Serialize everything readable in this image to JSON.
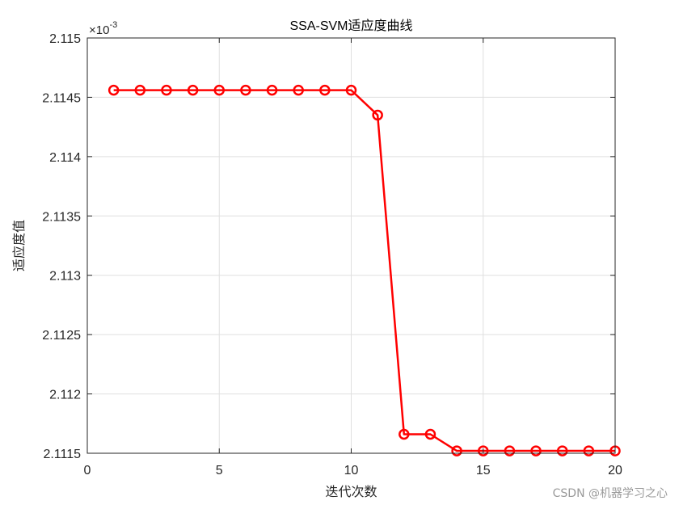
{
  "chart_data": {
    "type": "line",
    "title": "SSA-SVM适应度曲线",
    "xlabel": "迭代次数",
    "ylabel": "适应度值",
    "xlim": [
      0,
      20
    ],
    "ylim": [
      0.0021115,
      0.002115
    ],
    "y_exponent_label": "×10",
    "y_exponent_value": "-3",
    "xticks": [
      0,
      5,
      10,
      15,
      20
    ],
    "xtick_labels": [
      "0",
      "5",
      "10",
      "15",
      "20"
    ],
    "yticks": [
      0.0021115,
      0.002112,
      0.0021125,
      0.002113,
      0.0021135,
      0.002114,
      0.0021145,
      0.002115
    ],
    "ytick_labels": [
      "2.1115",
      "2.112",
      "2.1125",
      "2.113",
      "2.1135",
      "2.114",
      "2.1145",
      "2.115"
    ],
    "grid": true,
    "series": [
      {
        "color": "#ff0000",
        "marker": "circle",
        "x": [
          1,
          2,
          3,
          4,
          5,
          6,
          7,
          8,
          9,
          10,
          11,
          12,
          13,
          14,
          15,
          16,
          17,
          18,
          19,
          20
        ],
        "values": [
          0.00211456,
          0.00211456,
          0.00211456,
          0.00211456,
          0.00211456,
          0.00211456,
          0.00211456,
          0.00211456,
          0.00211456,
          0.00211456,
          0.00211435,
          0.00211166,
          0.00211166,
          0.00211152,
          0.00211152,
          0.00211152,
          0.00211152,
          0.00211152,
          0.00211152,
          0.00211152
        ]
      }
    ]
  },
  "watermark": "CSDN @机器学习之心"
}
